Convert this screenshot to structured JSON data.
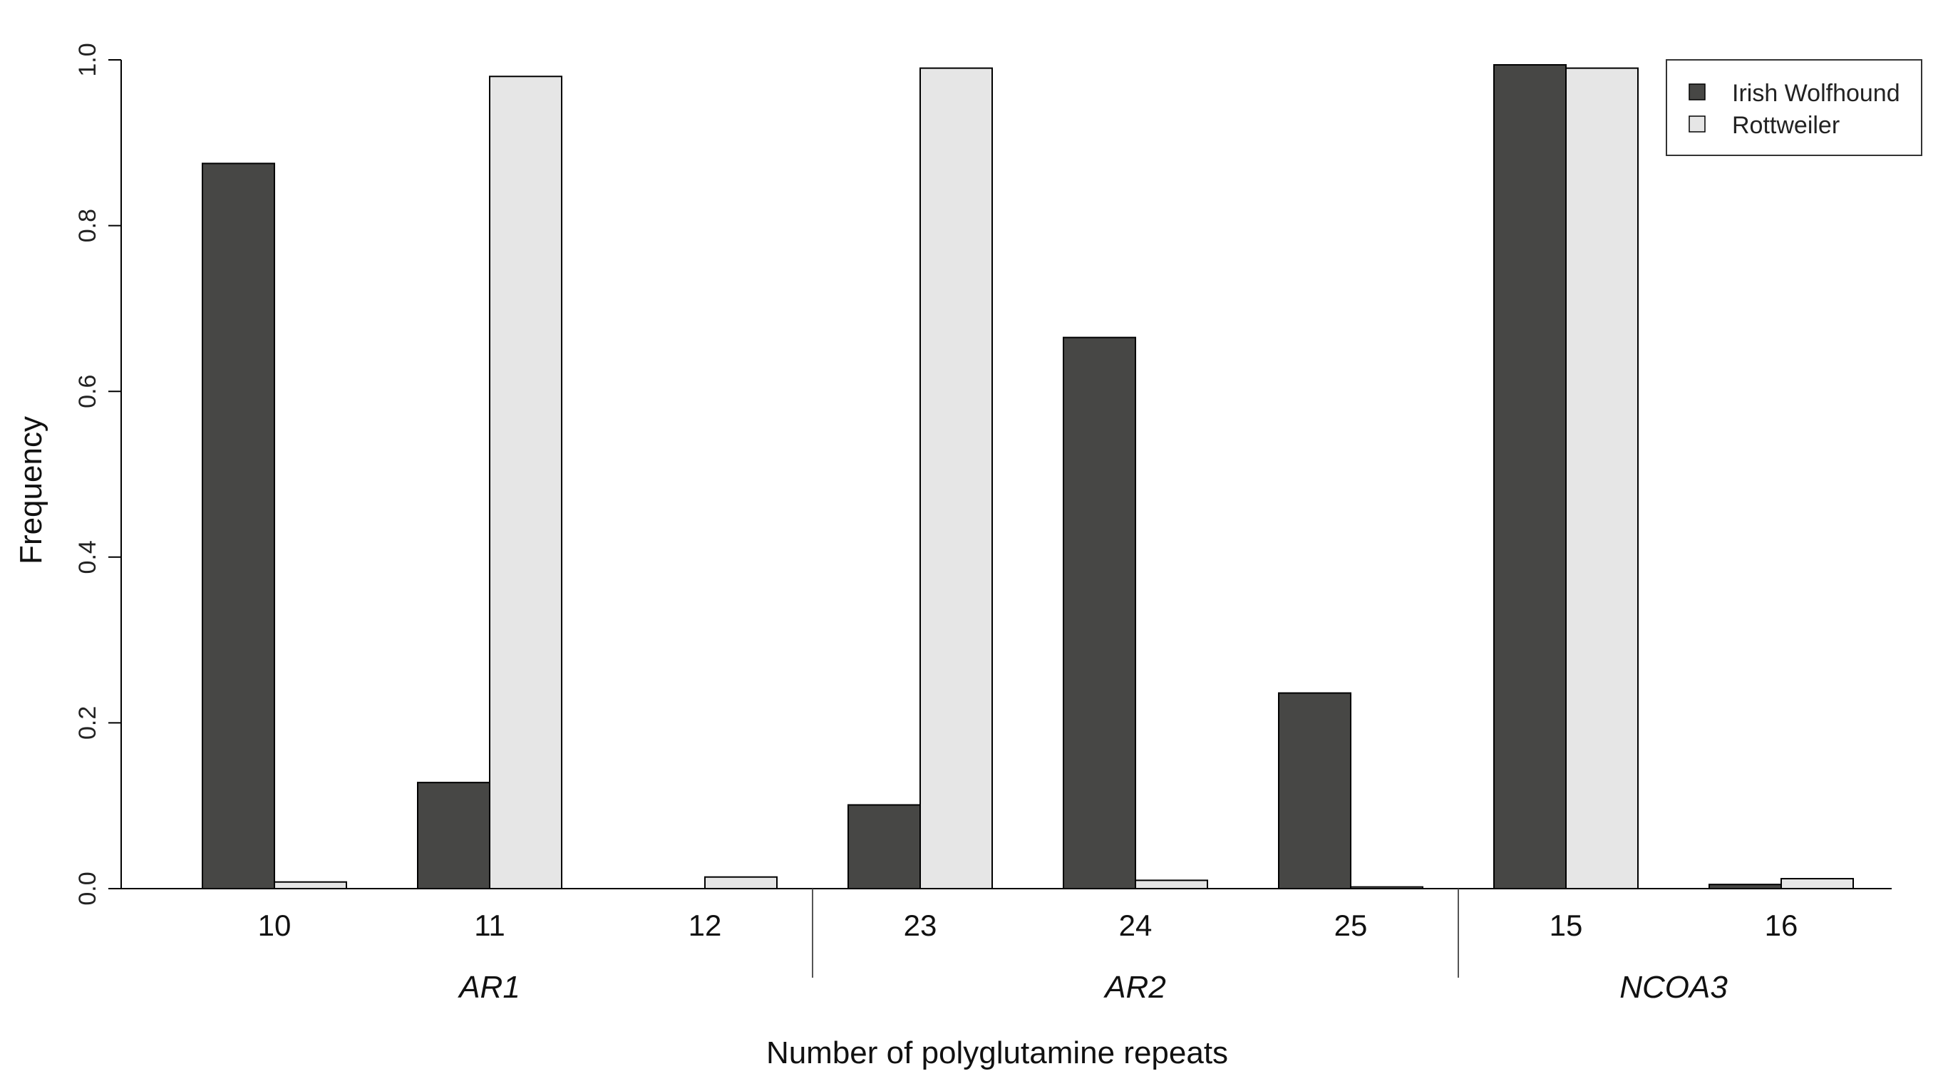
{
  "chart_data": {
    "type": "bar",
    "xlabel": "Number of polyglutamine repeats",
    "ylabel": "Frequency",
    "ylim": [
      0,
      1.0
    ],
    "yticks": [
      "0.0",
      "0.2",
      "0.4",
      "0.6",
      "0.8",
      "1.0"
    ],
    "grid": false,
    "legend_position": "top-right",
    "groups": [
      {
        "name": "AR1",
        "categories": [
          "10",
          "11",
          "12"
        ],
        "series": [
          {
            "name": "Irish Wolfhound",
            "values": [
              0.875,
              0.128,
              0.0
            ]
          },
          {
            "name": "Rottweiler",
            "values": [
              0.008,
              0.98,
              0.014
            ]
          }
        ]
      },
      {
        "name": "AR2",
        "categories": [
          "23",
          "24",
          "25"
        ],
        "series": [
          {
            "name": "Irish Wolfhound",
            "values": [
              0.101,
              0.665,
              0.236
            ]
          },
          {
            "name": "Rottweiler",
            "values": [
              0.99,
              0.01,
              0.002
            ]
          }
        ]
      },
      {
        "name": "NCOA3",
        "categories": [
          "15",
          "16"
        ],
        "series": [
          {
            "name": "Irish Wolfhound",
            "values": [
              0.994,
              0.005
            ]
          },
          {
            "name": "Rottweiler",
            "values": [
              0.99,
              0.012
            ]
          }
        ]
      }
    ],
    "legend": [
      {
        "name": "Irish Wolfhound",
        "color": "#474745"
      },
      {
        "name": "Rottweiler",
        "color": "#e6e6e6"
      }
    ]
  }
}
